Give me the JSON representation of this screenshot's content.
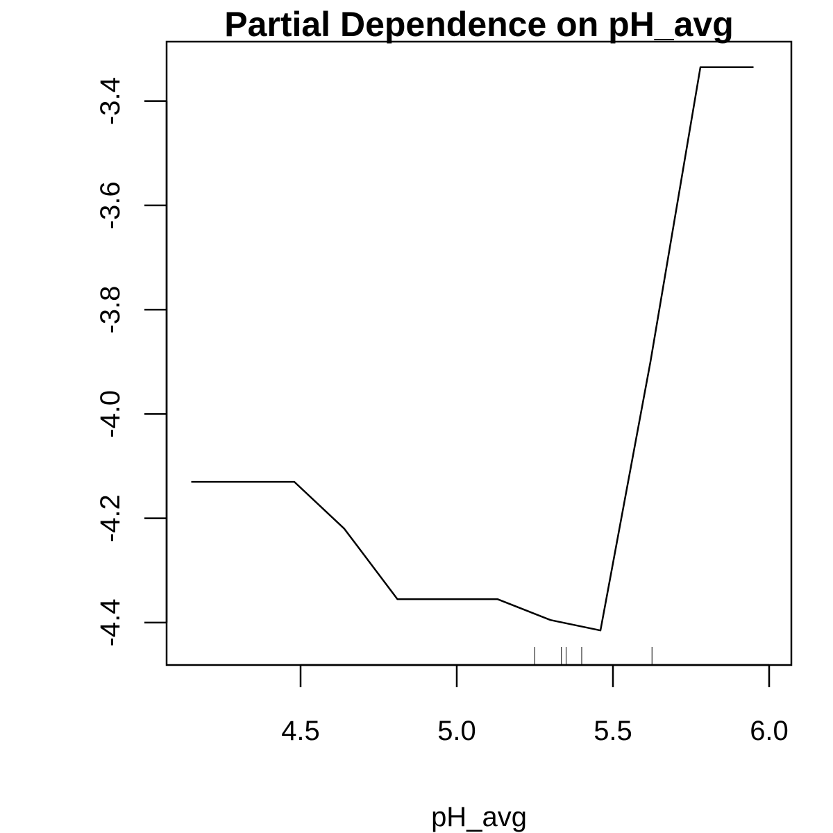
{
  "chart_data": {
    "type": "line",
    "title": "Partial Dependence on pH_avg",
    "xlabel": "pH_avg",
    "ylabel": "",
    "xlim": [
      4.12,
      6.0
    ],
    "ylim": [
      -4.46,
      -3.31
    ],
    "x_ticks": [
      4.5,
      5.0,
      5.5,
      6.0
    ],
    "x_tick_labels": [
      "4.5",
      "5.0",
      "5.5",
      "6.0"
    ],
    "y_ticks": [
      -4.4,
      -4.2,
      -4.0,
      -3.8,
      -3.6,
      -3.4
    ],
    "y_tick_labels": [
      "-4.4",
      "-4.2",
      "-4.0",
      "-3.8",
      "-3.6",
      "-3.4"
    ],
    "grid": false,
    "series": [
      {
        "x": [
          4.15,
          4.32,
          4.48,
          4.64,
          4.81,
          4.97,
          5.13,
          5.3,
          5.46,
          5.62,
          5.78,
          5.95
        ],
        "y": [
          -4.13,
          -4.13,
          -4.13,
          -4.22,
          -4.355,
          -4.355,
          -4.355,
          -4.395,
          -4.415,
          -3.9,
          -3.335,
          -3.335
        ]
      }
    ],
    "rug": [
      5.25,
      5.335,
      5.35,
      5.4,
      5.625
    ]
  }
}
